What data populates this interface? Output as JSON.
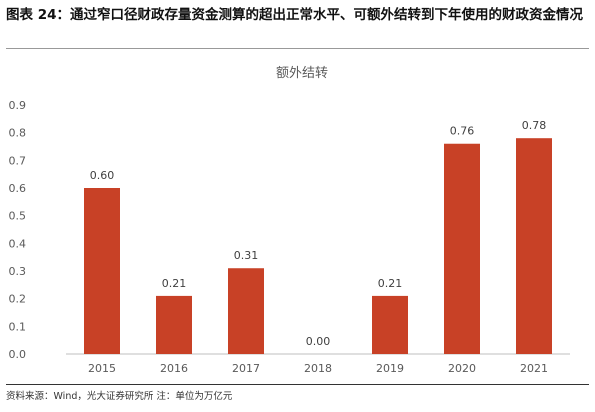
{
  "figure_title": "图表 24：通过窄口径财政存量资金测算的超出正常水平、可额外结转到下年使用的财政资金情况",
  "source_note": "资料来源：Wind，光大证券研究所  注：单位为万亿元",
  "colors": {
    "bar": "#C84126",
    "axis": "#bfbfbf",
    "text": "#595959"
  },
  "chart_data": {
    "type": "bar",
    "title": "额外结转",
    "xlabel": "",
    "ylabel": "",
    "categories": [
      "2015",
      "2016",
      "2017",
      "2018",
      "2019",
      "2020",
      "2021"
    ],
    "values": [
      0.6,
      0.21,
      0.31,
      0.0,
      0.21,
      0.76,
      0.78
    ],
    "value_labels": [
      "0.60",
      "0.21",
      "0.31",
      "0.00",
      "0.21",
      "0.76",
      "0.78"
    ],
    "ylim": [
      0,
      0.9
    ],
    "yticks": [
      "0.0",
      "0.1",
      "0.2",
      "0.3",
      "0.4",
      "0.5",
      "0.6",
      "0.7",
      "0.8",
      "0.9"
    ],
    "grid": false,
    "legend": "none"
  }
}
